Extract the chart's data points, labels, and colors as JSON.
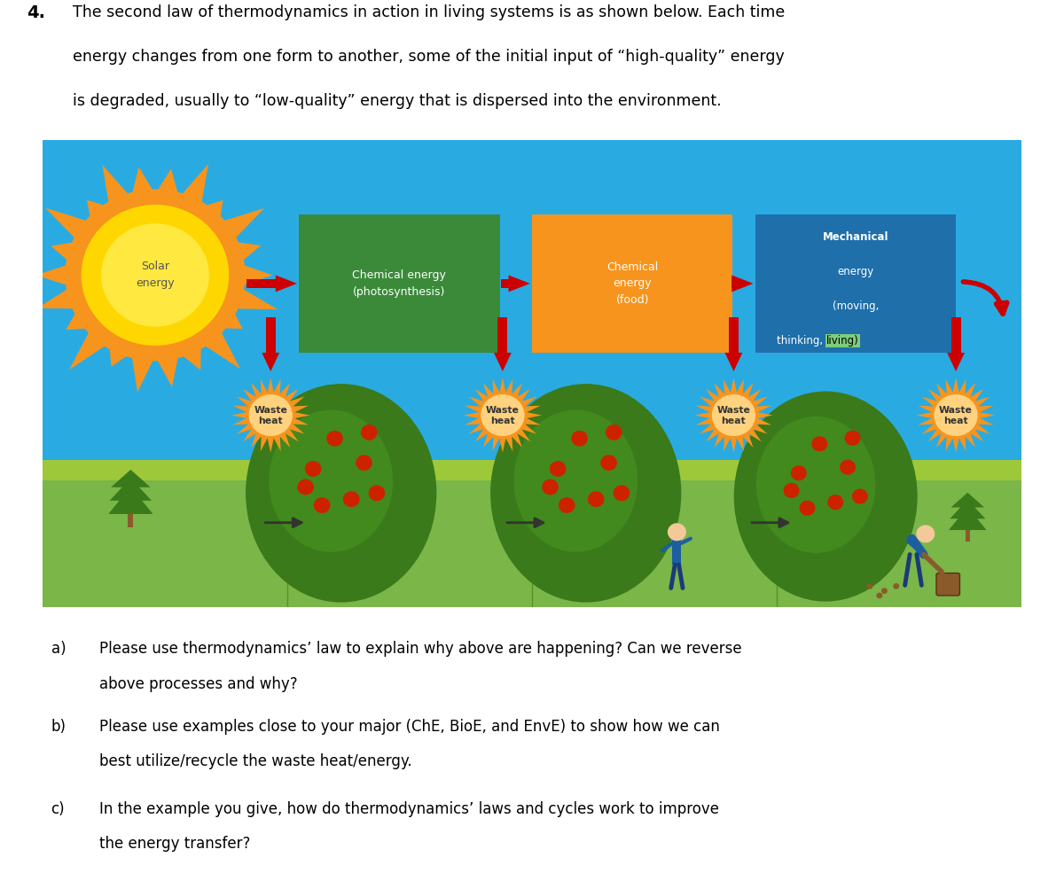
{
  "title_number": "4.",
  "title_lines": [
    "The second law of thermodynamics in action in living systems is as shown below. Each time",
    "energy changes from one form to another, some of the initial input of “high-quality” energy",
    "is degraded, usually to “low-quality” energy that is dispersed into the environment."
  ],
  "diagram_bg_sky": "#29ABE2",
  "diagram_bg_ground_top": "#8DC63F",
  "diagram_bg_ground_bottom": "#5A9A2A",
  "box_colors": [
    "#3A8A3A",
    "#F7941D",
    "#1F6FAB"
  ],
  "box_texts": [
    "Chemical energy\n(photosynthesis)",
    "Chemical\nenergy\n(food)",
    "Mechanical\nenergy\n(moving,\nthinking, living)"
  ],
  "box_text_color": "#FFFFFF",
  "solar_text": "Solar\nenergy",
  "solar_text_color": "#555555",
  "waste_heat_color_outer": "#F7941D",
  "waste_heat_color_inner": "#FFD700",
  "waste_heat_text": "Waste\nheat",
  "waste_heat_text_color": "#333333",
  "arrow_color": "#CC0000",
  "living_highlight_color": "#7CCD7C",
  "fig_width": 12.0,
  "fig_height": 9.85,
  "background_color": "#FFFFFF",
  "questions": [
    [
      "a)",
      "Please use thermodynamics’ law to explain why above are happening? Can we reverse",
      "above processes and why?"
    ],
    [
      "b)",
      "Please use examples close to your major (ChE, BioE, and EnvE) to show how we can",
      "best utilize/recycle the waste heat/energy."
    ],
    [
      "c)",
      "In the example you give, how do thermodynamics’ laws and cycles work to improve",
      "the energy transfer?"
    ]
  ]
}
